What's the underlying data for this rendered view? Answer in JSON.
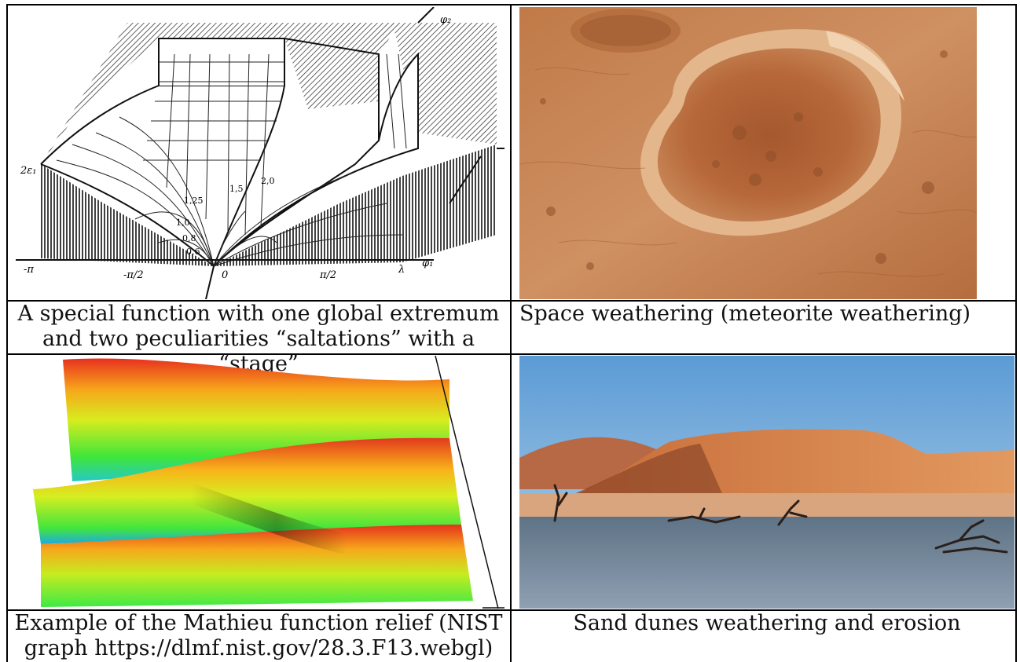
{
  "captions": {
    "top_left": [
      "A special function with one global extremum",
      "and two peculiarities “saltations” with a “stage”"
    ],
    "top_right": "Space weathering (meteorite weathering)",
    "bottom_left": [
      "Example of the Mathieu function relief (NIST",
      "graph https://dlmf.nist.gov/28.3.F13.webgl)"
    ],
    "bottom_right": "Sand dunes weathering and erosion"
  },
  "figure_labels": {
    "axis_phi2": "φ₂",
    "axis_phi1": "φ₁",
    "left_label": "2ε₁",
    "neg_pi": "-π",
    "neg_pi_half": "-π/2",
    "zero": "0",
    "pi_half": "π/2",
    "lambda": "λ",
    "contour_1": "1,0",
    "contour_2": "0,8",
    "contour_3": "0,6",
    "contour_4": "1,25",
    "contour_5": "1,5",
    "contour_6": "2,0"
  }
}
